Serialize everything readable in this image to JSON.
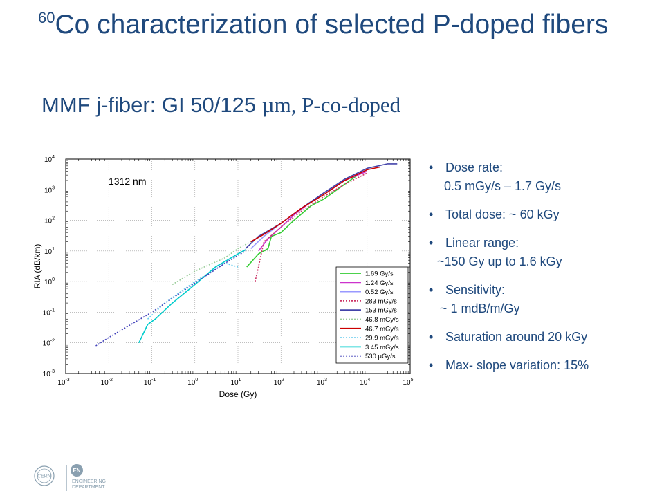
{
  "slide": {
    "title_sup": "60",
    "title_main": "Co characterization of selected P-doped fibers",
    "subtitle_sans": "MMF j-fiber: GI 50/125 ",
    "subtitle_serif": "µm, P-co-doped"
  },
  "bullets": [
    {
      "text": "Dose rate:",
      "sub": "0.5 mGy/s – 1.7 Gy/s",
      "sub_indent": 24
    },
    {
      "text": "Total dose: ~ 60 kGy",
      "sub": "",
      "sub_indent": 0
    },
    {
      "text": "Linear range:",
      "sub": "~150 Gy up to 1.6 kGy",
      "sub_indent": 14
    },
    {
      "text": "Sensitivity:",
      "sub": "~ 1 mdB/m/Gy",
      "sub_indent": 18
    },
    {
      "text": "Saturation around 20 kGy",
      "sub": "",
      "sub_indent": 0
    },
    {
      "text": "Max- slope variation: 15%",
      "sub": "",
      "sub_indent": 0
    }
  ],
  "footer": {
    "logo_left": "CERN",
    "logo_right": "EN",
    "dept_line1": "ENGINEERING",
    "dept_line2": "DEPARTMENT"
  },
  "chart_data": {
    "type": "line",
    "xscale": "log",
    "yscale": "log",
    "xlim": [
      0.001,
      100000
    ],
    "ylim": [
      0.001,
      10000
    ],
    "xlabel": "Dose (Gy)",
    "ylabel": "RIA (dB/km)",
    "annotation": "1312 nm",
    "grid": true,
    "legend_position": "lower-right",
    "series": [
      {
        "name": "1.69 Gy/s",
        "color": "#33cc33",
        "dash": "solid",
        "points": [
          [
            16,
            3
          ],
          [
            30,
            8
          ],
          [
            50,
            12
          ],
          [
            60,
            30
          ],
          [
            100,
            40
          ],
          [
            200,
            100
          ],
          [
            500,
            300
          ],
          [
            1000,
            500
          ],
          [
            2000,
            1000
          ],
          [
            6000,
            3000
          ]
        ]
      },
      {
        "name": "1.24 Gy/s",
        "color": "#cc33cc",
        "dash": "solid",
        "points": [
          [
            30,
            10
          ],
          [
            50,
            25
          ],
          [
            100,
            60
          ],
          [
            200,
            150
          ],
          [
            500,
            400
          ],
          [
            1000,
            800
          ],
          [
            3000,
            2000
          ],
          [
            10000,
            4000
          ]
        ]
      },
      {
        "name": "0.52 Gy/s",
        "color": "#9999ff",
        "dash": "solid",
        "points": [
          [
            20,
            12
          ],
          [
            40,
            30
          ],
          [
            100,
            80
          ],
          [
            300,
            250
          ],
          [
            1000,
            800
          ],
          [
            3000,
            2000
          ],
          [
            10000,
            4500
          ]
        ]
      },
      {
        "name": "283 mGy/s",
        "color": "#cc3366",
        "dash": "dotted",
        "points": [
          [
            25,
            1
          ],
          [
            30,
            3
          ],
          [
            40,
            20
          ],
          [
            100,
            60
          ],
          [
            300,
            200
          ],
          [
            1000,
            600
          ],
          [
            3000,
            1500
          ],
          [
            10000,
            3500
          ]
        ]
      },
      {
        "name": "153 mGy/s",
        "color": "#4444aa",
        "dash": "solid",
        "points": [
          [
            15,
            12
          ],
          [
            30,
            30
          ],
          [
            100,
            80
          ],
          [
            300,
            250
          ],
          [
            1000,
            800
          ],
          [
            3000,
            2200
          ],
          [
            10000,
            5000
          ],
          [
            30000,
            7000
          ],
          [
            50000,
            7000
          ]
        ]
      },
      {
        "name": "46.8 mGy/s",
        "color": "#99cc99",
        "dash": "dotted",
        "points": [
          [
            0.3,
            0.8
          ],
          [
            1,
            2.2
          ],
          [
            5,
            6
          ],
          [
            10,
            12
          ],
          [
            20,
            20
          ]
        ]
      },
      {
        "name": "46.7 mGy/s",
        "color": "#cc0000",
        "dash": "solid",
        "points": [
          [
            20,
            20
          ],
          [
            40,
            35
          ],
          [
            100,
            80
          ],
          [
            300,
            250
          ],
          [
            1000,
            700
          ],
          [
            3000,
            2000
          ],
          [
            10000,
            4500
          ],
          [
            20000,
            5500
          ]
        ]
      },
      {
        "name": "29.9 mGy/s",
        "color": "#66ccee",
        "dash": "dotted",
        "points": [
          [
            0.08,
            0.06
          ],
          [
            0.2,
            0.2
          ],
          [
            1,
            1
          ],
          [
            5,
            4
          ],
          [
            10,
            3
          ]
        ]
      },
      {
        "name": "3.45 mGy/s",
        "color": "#00cccc",
        "dash": "solid",
        "points": [
          [
            0.05,
            0.01
          ],
          [
            0.08,
            0.04
          ],
          [
            0.12,
            0.06
          ],
          [
            0.3,
            0.2
          ],
          [
            1,
            0.8
          ],
          [
            3,
            3
          ],
          [
            10,
            8
          ],
          [
            15,
            11
          ]
        ]
      },
      {
        "name": "530 μGy/s",
        "color": "#4444bb",
        "dash": "dotted",
        "points": [
          [
            0.005,
            0.008
          ],
          [
            0.01,
            0.015
          ],
          [
            0.1,
            0.1
          ],
          [
            1,
            0.9
          ],
          [
            5,
            4
          ],
          [
            15,
            10
          ]
        ]
      }
    ]
  }
}
